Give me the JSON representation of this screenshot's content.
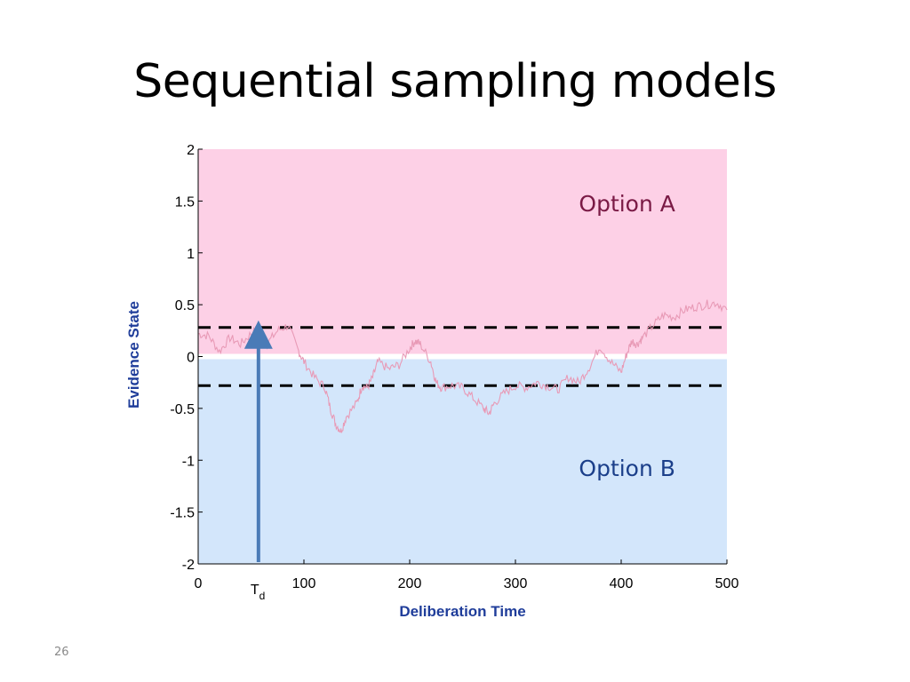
{
  "slide": {
    "title": "Sequential sampling models",
    "page_number": "26"
  },
  "chart_data": {
    "type": "line",
    "xlabel": "Deliberation Time",
    "ylabel": "Evidence State",
    "xlim": [
      0,
      500
    ],
    "ylim": [
      -2,
      2
    ],
    "x_ticks": [
      "0",
      "100",
      "200",
      "300",
      "400",
      "500"
    ],
    "y_ticks": [
      "2",
      "1.5",
      "1",
      "0.5",
      "0",
      "-0.5",
      "-1",
      "-1.5",
      "-2"
    ],
    "x_tick_values": [
      0,
      100,
      200,
      300,
      400,
      500
    ],
    "y_tick_values": [
      2,
      1.5,
      1,
      0.5,
      0,
      -0.5,
      -1,
      -1.5,
      -2
    ],
    "grid": false,
    "regions": [
      {
        "label": "Option A",
        "y_from": 0,
        "y_to": 2,
        "fill": "#fdd0e6",
        "label_color": "#7a1a45",
        "label_x": 360,
        "label_y": 1.4
      },
      {
        "label": "Option B",
        "y_from": -2,
        "y_to": 0,
        "fill": "#d3e6fb",
        "label_color": "#1b3f8a",
        "label_x": 360,
        "label_y": -1.15
      }
    ],
    "thresholds": [
      0.28,
      -0.28
    ],
    "decision_marker": {
      "label": "T",
      "subscript": "d",
      "x": 57,
      "y_from": -2,
      "y_to": 0.28,
      "color": "#4a7bb7"
    },
    "series_color": "#e89ab6",
    "series": [
      {
        "x": [
          0,
          10,
          20,
          30,
          40,
          50,
          57,
          65,
          75,
          85,
          95,
          100,
          110,
          120,
          125,
          130,
          135,
          140,
          150,
          155,
          160,
          165,
          170,
          180,
          190,
          200,
          205,
          210,
          220,
          225,
          230,
          240,
          250,
          260,
          270,
          275,
          280,
          290,
          300,
          310,
          320,
          330,
          340,
          350,
          360,
          370,
          380,
          390,
          400,
          405,
          410,
          415,
          420,
          430,
          440,
          450,
          460,
          470,
          480,
          490,
          500
        ],
        "y": [
          0.22,
          0.2,
          0.05,
          0.18,
          0.12,
          0.22,
          0.28,
          0.12,
          0.25,
          0.3,
          0.05,
          -0.05,
          -0.2,
          -0.3,
          -0.5,
          -0.65,
          -0.72,
          -0.58,
          -0.45,
          -0.28,
          -0.3,
          -0.2,
          -0.05,
          -0.12,
          -0.08,
          0.08,
          0.15,
          0.12,
          -0.05,
          -0.25,
          -0.3,
          -0.28,
          -0.3,
          -0.4,
          -0.5,
          -0.55,
          -0.45,
          -0.35,
          -0.28,
          -0.3,
          -0.25,
          -0.28,
          -0.32,
          -0.2,
          -0.25,
          -0.1,
          0.1,
          -0.05,
          -0.15,
          0.02,
          0.15,
          0.12,
          0.18,
          0.3,
          0.4,
          0.38,
          0.45,
          0.48,
          0.5,
          0.52,
          0.45
        ]
      }
    ]
  }
}
